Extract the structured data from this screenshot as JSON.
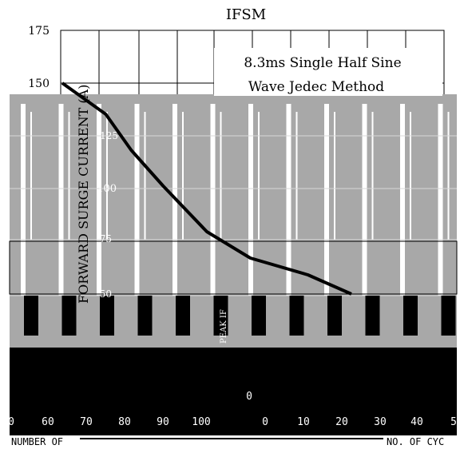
{
  "chart_data": {
    "type": "line",
    "title": "IFSM",
    "annotation_line1": "8.3ms Single Half Sine",
    "annotation_line2": "Wave Jedec Method",
    "ylabel": "FORWARD SURGE CURRENT (A)",
    "ylabel_fragment": "PEAK IF",
    "y_ticks": [
      "175",
      "150",
      "125",
      "100",
      "75",
      "50"
    ],
    "x_ticks_visible": [
      "0",
      "60",
      "70",
      "80",
      "90",
      "100",
      "0",
      "10",
      "20",
      "30",
      "40",
      "5"
    ],
    "x_zero_label": "0",
    "bottom_left_text": "NUMBER OF",
    "bottom_right_text": "NO. OF CYC",
    "ylim": [
      50,
      175
    ],
    "grid": true,
    "series": [
      {
        "x": [
          1,
          2,
          3,
          5,
          10,
          20,
          50,
          100
        ],
        "y": [
          150,
          137,
          122,
          107,
          88,
          77,
          70,
          62
        ]
      }
    ]
  }
}
